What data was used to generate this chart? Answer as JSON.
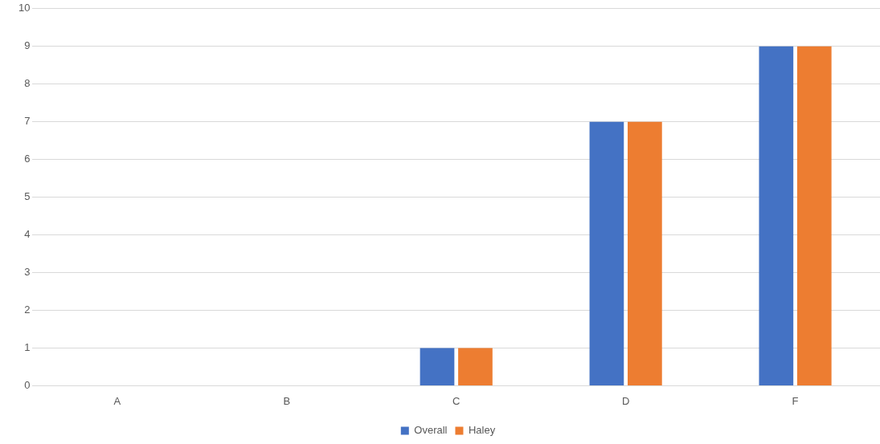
{
  "chart_data": {
    "type": "bar",
    "categories": [
      "A",
      "B",
      "C",
      "D",
      "F"
    ],
    "series": [
      {
        "name": "Overall",
        "color": "#4472c4",
        "values": [
          0,
          0,
          1,
          7,
          9
        ]
      },
      {
        "name": "Haley",
        "color": "#ed7d31",
        "values": [
          0,
          0,
          1,
          7,
          9
        ]
      }
    ],
    "ylim": [
      0,
      10
    ],
    "yticks": [
      0,
      1,
      2,
      3,
      4,
      5,
      6,
      7,
      8,
      9,
      10
    ],
    "grid": "y",
    "legend": "bottom"
  }
}
